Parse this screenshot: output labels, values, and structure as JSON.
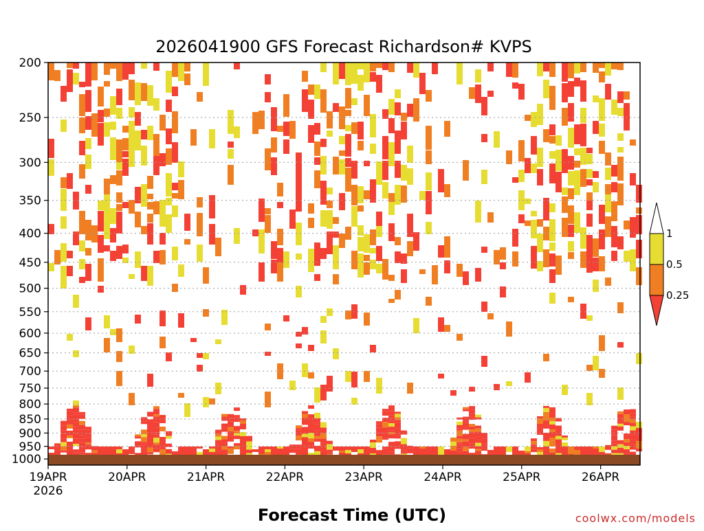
{
  "chart_data": {
    "type": "heatmap",
    "title": "2026041900 GFS Forecast Richardson# KVPS",
    "xlabel": "Forecast Time (UTC)",
    "ylabel": "",
    "x_ticks": [
      "19APR",
      "20APR",
      "21APR",
      "22APR",
      "23APR",
      "24APR",
      "25APR",
      "26APR"
    ],
    "x_year": "2026",
    "x_range_days": [
      0,
      7.5
    ],
    "y_ticks": [
      200,
      250,
      300,
      350,
      400,
      450,
      500,
      550,
      600,
      650,
      700,
      750,
      800,
      850,
      900,
      950,
      1000
    ],
    "y_scale": "log-pressure",
    "y_range_hpa": [
      200,
      1025
    ],
    "grid": "dotted horizontal at pressure levels",
    "legend": {
      "placement": "right",
      "ticks": [
        "1",
        "0.5",
        "0.25"
      ],
      "bins": [
        {
          "range": "0.5-1",
          "color": "#e6dc32"
        },
        {
          "range": "0.25-0.5",
          "color": "#f07f23"
        },
        {
          "range": "<0.25",
          "color": "#f44136"
        }
      ]
    },
    "colors": {
      "low": "#f44136",
      "mid": "#f07f23",
      "high": "#e6dc32",
      "ground": "#8b4a23"
    },
    "ri_cells": [
      {
        "day": 0.05,
        "p_top": 200,
        "p_bot": 310,
        "cat": "mixed"
      },
      {
        "day": 0.35,
        "p_top": 205,
        "p_bot": 300,
        "cat": "mixed"
      },
      {
        "day": 0.9,
        "p_top": 220,
        "p_bot": 320,
        "cat": "mixed"
      },
      {
        "day": 1.2,
        "p_top": 230,
        "p_bot": 330,
        "cat": "mixed"
      },
      {
        "day": 1.6,
        "p_top": 250,
        "p_bot": 300,
        "cat": "mixed"
      },
      {
        "day": 2.6,
        "p_top": 260,
        "p_bot": 320,
        "cat": "mixed"
      },
      {
        "day": 3.2,
        "p_top": 260,
        "p_bot": 330,
        "cat": "mixed"
      },
      {
        "day": 3.8,
        "p_top": 220,
        "p_bot": 320,
        "cat": "mixed"
      },
      {
        "day": 5.1,
        "p_top": 220,
        "p_bot": 280,
        "cat": "mixed"
      },
      {
        "day": 6.9,
        "p_top": 205,
        "p_bot": 300,
        "cat": "mixed"
      }
    ],
    "note_ground": "surface layer near 1000 hPa"
  }
}
